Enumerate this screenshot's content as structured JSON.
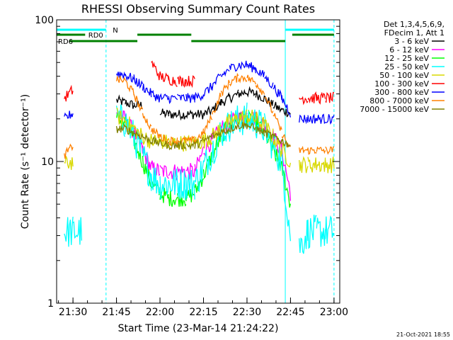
{
  "chart_data": {
    "type": "line",
    "title": "RHESSI Observing Summary Count Rates",
    "xlabel": "Start Time (23-Mar-14 21:24:22)",
    "ylabel": "Count Rate (s⁻¹ detector⁻¹)",
    "yscale": "log",
    "ylim": [
      1,
      100
    ],
    "xlim": [
      21.406,
      23.033
    ],
    "x_ticks": [
      {
        "v": 21.5,
        "label": "21:30"
      },
      {
        "v": 21.75,
        "label": "21:45"
      },
      {
        "v": 22.0,
        "label": "22:00"
      },
      {
        "v": 22.25,
        "label": "22:15"
      },
      {
        "v": 22.5,
        "label": "22:30"
      },
      {
        "v": 22.75,
        "label": "22:45"
      },
      {
        "v": 23.0,
        "label": "23:00"
      }
    ],
    "y_ticks": [
      {
        "v": 1,
        "label": "1"
      },
      {
        "v": 10,
        "label": "10"
      },
      {
        "v": 100,
        "label": "100"
      }
    ],
    "legend": {
      "position": "right",
      "header": [
        "Det 1,3,4,5,6,9,",
        "FDecim 1, Att 1"
      ]
    },
    "series": [
      {
        "name": "3 - 6 keV",
        "color": "#000000",
        "noise": 0.035,
        "x": [
          21.45,
          21.5,
          21.55,
          21.6,
          21.65,
          21.7,
          21.75,
          21.8,
          21.85,
          21.9,
          21.95,
          22.0,
          22.05,
          22.1,
          22.15,
          22.2,
          22.25,
          22.3,
          22.35,
          22.4,
          22.45,
          22.5,
          22.55,
          22.6,
          22.65,
          22.7,
          22.75,
          22.78,
          22.8,
          22.85,
          22.9,
          22.95,
          23.0
        ],
        "y": [
          null,
          null,
          null,
          null,
          null,
          null,
          27,
          26,
          25,
          25,
          null,
          22,
          21.5,
          21.5,
          21.5,
          21.5,
          21.5,
          23,
          26,
          28,
          30,
          31,
          30,
          28,
          25,
          23,
          22,
          null,
          null,
          null,
          null,
          null,
          null
        ]
      },
      {
        "name": "6 - 12 keV",
        "color": "#ff00ff",
        "noise": 0.06,
        "x": [
          21.45,
          21.5,
          21.55,
          21.6,
          21.65,
          21.7,
          21.75,
          21.8,
          21.85,
          21.9,
          21.95,
          22.0,
          22.05,
          22.1,
          22.15,
          22.2,
          22.25,
          22.3,
          22.35,
          22.4,
          22.45,
          22.5,
          22.55,
          22.6,
          22.65,
          22.7,
          22.75,
          22.78,
          22.8,
          22.85,
          22.9,
          22.95,
          23.0
        ],
        "y": [
          null,
          null,
          null,
          null,
          null,
          null,
          21,
          20,
          16,
          12,
          9,
          8.5,
          8.5,
          8.5,
          8.5,
          8.5,
          12,
          14,
          17,
          19,
          20,
          21,
          20,
          18,
          15,
          12,
          6,
          null,
          null,
          null,
          null,
          null,
          null
        ]
      },
      {
        "name": "12 - 25 keV",
        "color": "#00ff00",
        "noise": 0.06,
        "x": [
          21.45,
          21.5,
          21.55,
          21.6,
          21.65,
          21.7,
          21.75,
          21.8,
          21.85,
          21.9,
          21.95,
          22.0,
          22.05,
          22.1,
          22.15,
          22.2,
          22.25,
          22.3,
          22.35,
          22.4,
          22.45,
          22.5,
          22.55,
          22.6,
          22.65,
          22.7,
          22.75,
          22.78,
          22.8,
          22.85,
          22.9,
          22.95,
          23.0
        ],
        "y": [
          null,
          null,
          null,
          null,
          null,
          null,
          20,
          19,
          14,
          10,
          7,
          6,
          5.5,
          5.5,
          5.5,
          6,
          8,
          11,
          15,
          18,
          19.5,
          20,
          19,
          16,
          12,
          9,
          5,
          null,
          null,
          null,
          null,
          null,
          null
        ]
      },
      {
        "name": "25 - 50 keV",
        "color": "#00ffff",
        "noise": 0.12,
        "x": [
          21.45,
          21.5,
          21.55,
          21.6,
          21.65,
          21.7,
          21.75,
          21.8,
          21.85,
          21.9,
          21.95,
          22.0,
          22.05,
          22.1,
          22.15,
          22.2,
          22.25,
          22.3,
          22.35,
          22.4,
          22.45,
          22.5,
          22.55,
          22.6,
          22.65,
          22.7,
          22.75,
          22.78,
          22.8,
          22.85,
          22.9,
          22.95,
          23.0
        ],
        "y": [
          3.2,
          3.2,
          3.2,
          null,
          null,
          null,
          20,
          19,
          15,
          11,
          8,
          7,
          7,
          7,
          7,
          7,
          9,
          12,
          16,
          18,
          19.5,
          20,
          19,
          17,
          13,
          10,
          3,
          null,
          2.5,
          3.2,
          3.2,
          3.2,
          3.2
        ]
      },
      {
        "name": "50 - 100 keV",
        "color": "#d8d800",
        "noise": 0.06,
        "x": [
          21.45,
          21.5,
          21.55,
          21.6,
          21.65,
          21.7,
          21.75,
          21.8,
          21.85,
          21.9,
          21.95,
          22.0,
          22.05,
          22.1,
          22.15,
          22.2,
          22.25,
          22.3,
          22.35,
          22.4,
          22.45,
          22.5,
          22.55,
          22.6,
          22.65,
          22.7,
          22.75,
          22.78,
          22.8,
          22.85,
          22.9,
          22.95,
          23.0
        ],
        "y": [
          9.5,
          10,
          null,
          null,
          null,
          null,
          21,
          19.5,
          17,
          15,
          14,
          14,
          13.5,
          13.5,
          13.5,
          13.5,
          14,
          15,
          17,
          19,
          20,
          21,
          20,
          18,
          15,
          12,
          10,
          null,
          9.5,
          9.5,
          9.5,
          9.5,
          9.5
        ]
      },
      {
        "name": "100 - 300 keV",
        "color": "#ff0000",
        "noise": 0.04,
        "x": [
          21.45,
          21.5,
          21.55,
          21.6,
          21.65,
          21.7,
          21.75,
          21.8,
          21.85,
          21.9,
          21.95,
          22.0,
          22.05,
          22.1,
          22.15,
          22.2,
          22.25,
          22.3,
          22.35,
          22.4,
          22.45,
          22.5,
          22.55,
          22.6,
          22.65,
          22.7,
          22.75,
          22.78,
          22.8,
          22.85,
          22.9,
          22.95,
          23.0
        ],
        "y": [
          28,
          32,
          null,
          null,
          null,
          null,
          null,
          null,
          null,
          null,
          50,
          40,
          38,
          37,
          37,
          37,
          null,
          null,
          null,
          null,
          null,
          null,
          null,
          null,
          null,
          null,
          null,
          null,
          28,
          28,
          28,
          28,
          28
        ]
      },
      {
        "name": "300 - 800 keV",
        "color": "#0000ff",
        "noise": 0.035,
        "x": [
          21.45,
          21.5,
          21.55,
          21.6,
          21.65,
          21.7,
          21.75,
          21.8,
          21.85,
          21.9,
          21.95,
          22.0,
          22.05,
          22.1,
          22.15,
          22.2,
          22.25,
          22.3,
          22.35,
          22.4,
          22.45,
          22.5,
          22.55,
          22.6,
          22.65,
          22.7,
          22.75,
          22.78,
          22.8,
          22.85,
          22.9,
          22.95,
          23.0
        ],
        "y": [
          20,
          22,
          null,
          null,
          null,
          null,
          42,
          41,
          38,
          34,
          30,
          28,
          28,
          28,
          28,
          28,
          30,
          34,
          40,
          45,
          48,
          48,
          45,
          40,
          34,
          28,
          22,
          null,
          20,
          20,
          20,
          20,
          20
        ]
      },
      {
        "name": "800 - 7000 keV",
        "color": "#ff8000",
        "noise": 0.03,
        "x": [
          21.45,
          21.5,
          21.55,
          21.6,
          21.65,
          21.7,
          21.75,
          21.8,
          21.85,
          21.9,
          21.95,
          22.0,
          22.05,
          22.1,
          22.15,
          22.2,
          22.25,
          22.3,
          22.35,
          22.4,
          22.45,
          22.5,
          22.55,
          22.6,
          22.65,
          22.7,
          22.75,
          22.78,
          22.8,
          22.85,
          22.9,
          22.95,
          23.0
        ],
        "y": [
          11,
          13,
          null,
          null,
          null,
          null,
          38,
          37,
          30,
          22,
          17,
          15,
          14,
          14,
          14,
          14,
          16,
          21,
          30,
          36,
          39,
          39,
          36,
          30,
          22,
          16,
          12,
          null,
          12,
          12,
          12,
          12,
          12
        ]
      },
      {
        "name": "7000 - 15000 keV",
        "color": "#808000",
        "noise": 0.03,
        "x": [
          21.45,
          21.5,
          21.55,
          21.6,
          21.65,
          21.7,
          21.75,
          21.8,
          21.85,
          21.9,
          21.95,
          22.0,
          22.05,
          22.1,
          22.15,
          22.2,
          22.25,
          22.3,
          22.35,
          22.4,
          22.45,
          22.5,
          22.55,
          22.6,
          22.65,
          22.7,
          22.75,
          22.78,
          22.8,
          22.85,
          22.9,
          22.95,
          23.0
        ],
        "y": [
          null,
          null,
          null,
          null,
          null,
          null,
          17,
          17,
          16,
          15,
          14,
          13.5,
          13,
          13,
          13,
          13,
          14,
          15,
          16,
          17,
          18,
          18,
          17,
          16,
          15,
          14,
          13,
          null,
          null,
          null,
          null,
          null,
          null
        ]
      }
    ],
    "flags": [
      {
        "label": "N",
        "color": "#00ffff",
        "segments": [
          [
            21.406,
            21.69
          ],
          [
            22.72,
            23.0
          ]
        ],
        "label_at": 21.72,
        "level": 0
      },
      {
        "label": "RD0",
        "color": "#008000",
        "segments": [
          [
            21.406,
            21.57
          ],
          [
            21.87,
            22.18
          ],
          [
            22.76,
            23.0
          ]
        ],
        "label_at": 21.58,
        "level": 1
      },
      {
        "label": "RD6",
        "color": "#008000",
        "segments": [
          [
            21.48,
            21.87
          ],
          [
            22.18,
            22.72
          ]
        ],
        "label_at": 21.406,
        "level": 2
      }
    ],
    "vlines": [
      {
        "x": 21.406,
        "color": "#00ffff",
        "style": "solid"
      },
      {
        "x": 21.69,
        "color": "#00ffff",
        "style": "dashed"
      },
      {
        "x": 22.72,
        "color": "#00ffff",
        "style": "solid"
      },
      {
        "x": 23.0,
        "color": "#00ffff",
        "style": "dashed"
      }
    ],
    "grid": false,
    "footer_timestamp": "21-Oct-2021 18:55"
  }
}
